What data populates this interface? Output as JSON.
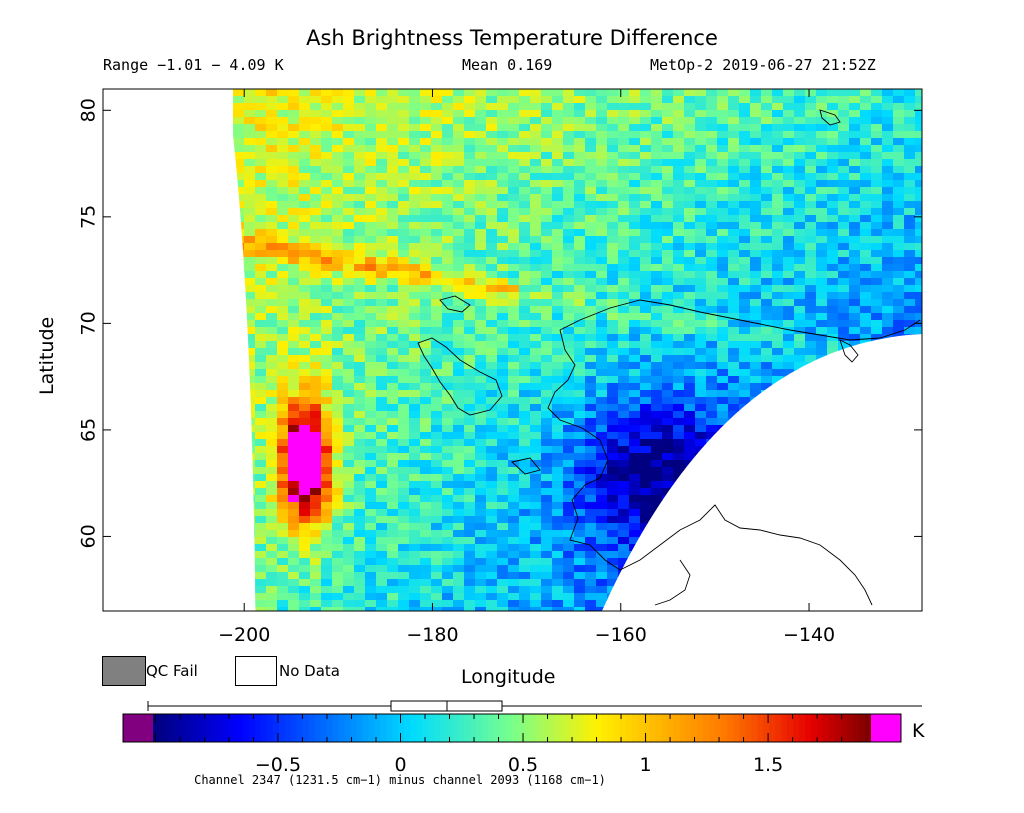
{
  "header": {
    "title": "Ash Brightness Temperature Difference",
    "range": "Range −1.01 − 4.09 K",
    "mean": "Mean 0.169",
    "satellite_time": "MetOp-2 2019-06-27 21:52Z"
  },
  "legend": {
    "qc_fail_label": "QC Fail",
    "no_data_label": "No Data",
    "qc_fail_color": "#808080",
    "no_data_color": "#ffffff"
  },
  "colorbar": {
    "unit": "K",
    "min": -1.01,
    "max": 1.92,
    "ticks": [
      {
        "value": -0.5,
        "label": "−0.5"
      },
      {
        "value": 0,
        "label": "0"
      },
      {
        "value": 0.5,
        "label": "0.5"
      },
      {
        "value": 1,
        "label": "1"
      },
      {
        "value": 1.5,
        "label": "1.5"
      }
    ],
    "under_color": "#800080",
    "over_color": "#ff00ff",
    "boxplot": {
      "min": -1.01,
      "q1": -0.05,
      "median": 0.15,
      "q3": 0.35,
      "max": 4.09
    },
    "note": "Channel 2347 (1231.5 cm−1) minus channel 2093 (1168 cm−1)"
  },
  "chart_data": {
    "type": "heatmap",
    "title": "Ash Brightness Temperature Difference",
    "xlabel": "Longitude",
    "ylabel": "Latitude",
    "xlim": [
      -215,
      -128
    ],
    "ylim": [
      56.5,
      81
    ],
    "x_ticks": [
      {
        "value": -200,
        "label": "−200"
      },
      {
        "value": -180,
        "label": "−180"
      },
      {
        "value": -160,
        "label": "−160"
      },
      {
        "value": -140,
        "label": "−140"
      }
    ],
    "y_ticks": [
      {
        "value": 60,
        "label": "60"
      },
      {
        "value": 65,
        "label": "65"
      },
      {
        "value": 70,
        "label": "70"
      },
      {
        "value": 75,
        "label": "75"
      },
      {
        "value": 80,
        "label": "80"
      }
    ],
    "unit": "K",
    "swath": {
      "left_edge_lon_at_top": -200.5,
      "left_edge_lon_at_bottom": -198.8,
      "right_edge_lon_at_bottom": -162,
      "right_edge_lon_at_right": -128,
      "right_edge_lat_at_right": 69.5
    }
  }
}
